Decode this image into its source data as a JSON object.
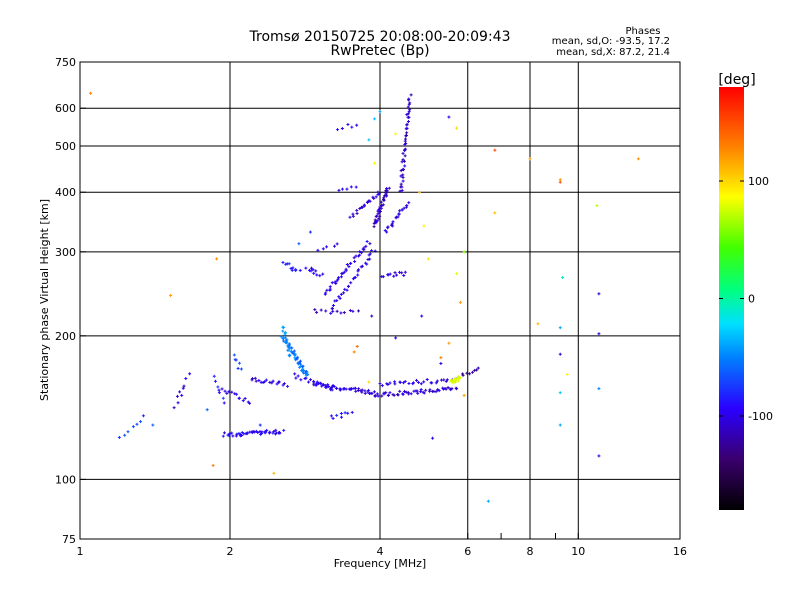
{
  "chart_data": {
    "type": "scatter",
    "title": "Tromsø 20150725 20:08:00-20:09:43",
    "subtitle": "RwPretec (Bp)",
    "xlabel": "Frequency [MHz]",
    "ylabel": "Stationary phase Virtual Height [km]",
    "x_scale": "log",
    "y_scale": "log",
    "xlim": [
      1,
      16
    ],
    "ylim": [
      75,
      750
    ],
    "x_ticks": [
      "1",
      "2",
      "4",
      "6",
      "8",
      "10",
      "16"
    ],
    "y_ticks": [
      "75",
      "100",
      "200",
      "300",
      "400",
      "500",
      "600",
      "750"
    ],
    "grid": true,
    "phases": {
      "heading": "Phases",
      "line_o": "mean, sd,O: -93.5, 17.2",
      "line_x": "mean, sd,X:  87.2, 21.4"
    },
    "colorbar": {
      "label": "[deg]",
      "range": [
        -180,
        180
      ],
      "ticks": [
        "100",
        "0",
        "-100"
      ]
    },
    "traces": [
      {
        "from": [
          1.95,
          124
        ],
        "to": [
          2.55,
          126
        ],
        "phase": -95,
        "count": 45
      },
      {
        "from": [
          1.2,
          122
        ],
        "to": [
          1.35,
          135
        ],
        "phase": -75,
        "count": 7
      },
      {
        "from": [
          1.55,
          142
        ],
        "to": [
          1.65,
          165
        ],
        "phase": -105,
        "count": 8
      },
      {
        "from": [
          1.85,
          165
        ],
        "to": [
          1.95,
          145
        ],
        "phase": -80,
        "count": 6
      },
      {
        "from": [
          1.9,
          155
        ],
        "to": [
          2.2,
          145
        ],
        "phase": -100,
        "count": 14
      },
      {
        "from": [
          2.05,
          182
        ],
        "to": [
          2.1,
          170
        ],
        "phase": -70,
        "count": 6
      },
      {
        "from": [
          2.2,
          162
        ],
        "to": [
          2.6,
          158
        ],
        "phase": -100,
        "count": 18
      },
      {
        "from": [
          2.55,
          200
        ],
        "to": [
          2.85,
          165
        ],
        "phase": -50,
        "count": 35
      },
      {
        "from": [
          2.55,
          210
        ],
        "to": [
          2.65,
          180
        ],
        "phase": -45,
        "count": 18
      },
      {
        "from": [
          2.7,
          165
        ],
        "to": [
          3.2,
          155
        ],
        "phase": -100,
        "count": 18
      },
      {
        "from": [
          2.7,
          185
        ],
        "to": [
          2.85,
          165
        ],
        "phase": -60,
        "count": 12
      },
      {
        "from": [
          2.95,
          158
        ],
        "to": [
          3.9,
          152
        ],
        "phase": -100,
        "count": 45
      },
      {
        "from": [
          3.9,
          150
        ],
        "to": [
          5.7,
          155
        ],
        "phase": -105,
        "count": 50
      },
      {
        "from": [
          4.0,
          158
        ],
        "to": [
          5.7,
          162
        ],
        "phase": -100,
        "count": 30
      },
      {
        "from": [
          5.55,
          160
        ],
        "to": [
          5.8,
          163
        ],
        "phase": 80,
        "count": 18
      },
      {
        "from": [
          5.85,
          165
        ],
        "to": [
          6.3,
          172
        ],
        "phase": -125,
        "count": 8
      },
      {
        "from": [
          3.2,
          135
        ],
        "to": [
          3.5,
          138
        ],
        "phase": -90,
        "count": 8
      },
      {
        "from": [
          2.55,
          285
        ],
        "to": [
          2.75,
          272
        ],
        "phase": -90,
        "count": 10
      },
      {
        "from": [
          2.85,
          278
        ],
        "to": [
          3.05,
          268
        ],
        "phase": -100,
        "count": 10
      },
      {
        "from": [
          2.95,
          225
        ],
        "to": [
          3.6,
          225
        ],
        "phase": -110,
        "count": 12
      },
      {
        "from": [
          3.1,
          245
        ],
        "to": [
          3.8,
          315
        ],
        "phase": -100,
        "count": 35
      },
      {
        "from": [
          3.2,
          228
        ],
        "to": [
          3.9,
          302
        ],
        "phase": -100,
        "count": 30
      },
      {
        "from": [
          3.5,
          355
        ],
        "to": [
          4.0,
          400
        ],
        "phase": -105,
        "count": 20
      },
      {
        "from": [
          3.9,
          340
        ],
        "to": [
          4.15,
          410
        ],
        "phase": -110,
        "count": 40
      },
      {
        "from": [
          4.05,
          268
        ],
        "to": [
          4.5,
          270
        ],
        "phase": -105,
        "count": 12
      },
      {
        "from": [
          4.1,
          330
        ],
        "to": [
          4.55,
          380
        ],
        "phase": -100,
        "count": 20
      },
      {
        "from": [
          4.4,
          400
        ],
        "to": [
          4.6,
          640
        ],
        "phase": -110,
        "count": 45
      },
      {
        "from": [
          3.3,
          545
        ],
        "to": [
          3.6,
          555
        ],
        "phase": -95,
        "count": 5
      },
      {
        "from": [
          3.3,
          405
        ],
        "to": [
          3.6,
          410
        ],
        "phase": -100,
        "count": 5
      },
      {
        "from": [
          3.0,
          305
        ],
        "to": [
          3.3,
          310
        ],
        "phase": -100,
        "count": 5
      }
    ],
    "points": [
      {
        "x": 1.05,
        "y": 645,
        "phase": 130
      },
      {
        "x": 1.88,
        "y": 290,
        "phase": 125
      },
      {
        "x": 1.85,
        "y": 107,
        "phase": 130
      },
      {
        "x": 1.52,
        "y": 243,
        "phase": 120
      },
      {
        "x": 2.45,
        "y": 103,
        "phase": 110
      },
      {
        "x": 3.8,
        "y": 515,
        "phase": -30
      },
      {
        "x": 3.9,
        "y": 460,
        "phase": 85
      },
      {
        "x": 4.3,
        "y": 530,
        "phase": 90
      },
      {
        "x": 4.8,
        "y": 400,
        "phase": 110
      },
      {
        "x": 4.9,
        "y": 340,
        "phase": 90
      },
      {
        "x": 5.0,
        "y": 290,
        "phase": 95
      },
      {
        "x": 5.5,
        "y": 575,
        "phase": -100
      },
      {
        "x": 5.7,
        "y": 545,
        "phase": 100
      },
      {
        "x": 5.9,
        "y": 300,
        "phase": 60
      },
      {
        "x": 5.8,
        "y": 235,
        "phase": 120
      },
      {
        "x": 5.9,
        "y": 150,
        "phase": 120
      },
      {
        "x": 5.7,
        "y": 270,
        "phase": 80
      },
      {
        "x": 5.1,
        "y": 122,
        "phase": -100
      },
      {
        "x": 5.5,
        "y": 193,
        "phase": 120
      },
      {
        "x": 5.3,
        "y": 180,
        "phase": 130
      },
      {
        "x": 6.8,
        "y": 490,
        "phase": 150
      },
      {
        "x": 6.8,
        "y": 362,
        "phase": 110
      },
      {
        "x": 6.6,
        "y": 90,
        "phase": -40
      },
      {
        "x": 8.0,
        "y": 470,
        "phase": 120
      },
      {
        "x": 8.3,
        "y": 212,
        "phase": 110
      },
      {
        "x": 9.2,
        "y": 425,
        "phase": 120
      },
      {
        "x": 9.2,
        "y": 420,
        "phase": 150
      },
      {
        "x": 9.3,
        "y": 265,
        "phase": -10
      },
      {
        "x": 9.2,
        "y": 208,
        "phase": -40
      },
      {
        "x": 9.2,
        "y": 183,
        "phase": -110
      },
      {
        "x": 9.2,
        "y": 152,
        "phase": -30
      },
      {
        "x": 9.2,
        "y": 130,
        "phase": -40
      },
      {
        "x": 9.5,
        "y": 166,
        "phase": 90
      },
      {
        "x": 10.9,
        "y": 375,
        "phase": 70
      },
      {
        "x": 11.0,
        "y": 245,
        "phase": -110
      },
      {
        "x": 11.0,
        "y": 202,
        "phase": -110
      },
      {
        "x": 11.0,
        "y": 155,
        "phase": -50
      },
      {
        "x": 11.0,
        "y": 112,
        "phase": -100
      },
      {
        "x": 13.2,
        "y": 470,
        "phase": 125
      },
      {
        "x": 3.85,
        "y": 220,
        "phase": -110
      },
      {
        "x": 3.55,
        "y": 185,
        "phase": 130
      },
      {
        "x": 3.6,
        "y": 190,
        "phase": 140
      },
      {
        "x": 3.8,
        "y": 160,
        "phase": 100
      },
      {
        "x": 4.3,
        "y": 198,
        "phase": -100
      },
      {
        "x": 5.3,
        "y": 175,
        "phase": -100
      },
      {
        "x": 4.85,
        "y": 220,
        "phase": -100
      },
      {
        "x": 2.3,
        "y": 130,
        "phase": -80
      },
      {
        "x": 1.8,
        "y": 140,
        "phase": -60
      },
      {
        "x": 1.4,
        "y": 130,
        "phase": -60
      },
      {
        "x": 1.6,
        "y": 150,
        "phase": -100
      },
      {
        "x": 2.75,
        "y": 312,
        "phase": -60
      },
      {
        "x": 2.9,
        "y": 330,
        "phase": -80
      },
      {
        "x": 4.0,
        "y": 590,
        "phase": -40
      },
      {
        "x": 3.9,
        "y": 570,
        "phase": -30
      }
    ]
  }
}
